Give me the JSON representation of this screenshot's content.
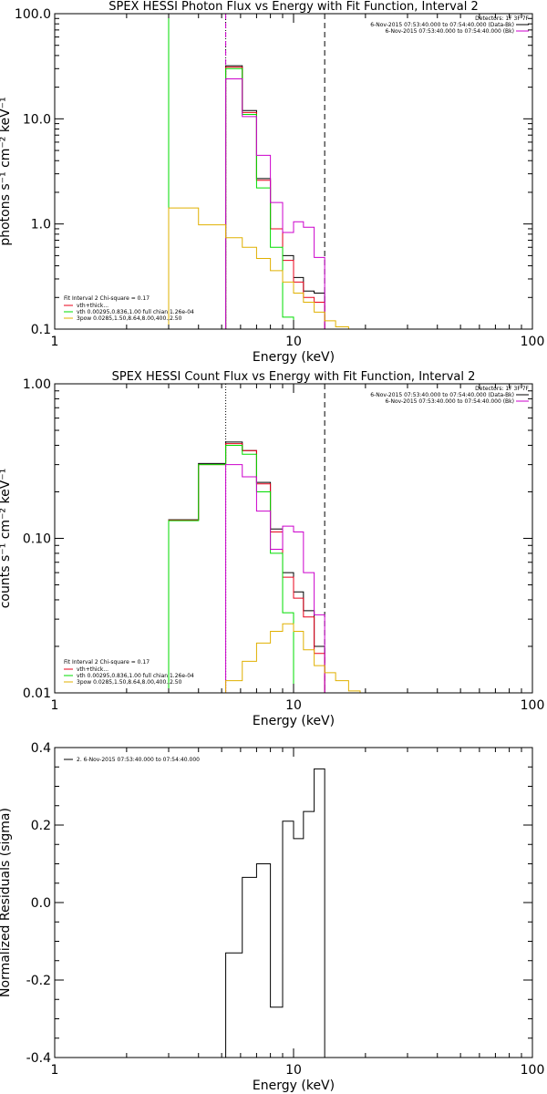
{
  "colors": {
    "background": "#ffffff",
    "axes": "#000000",
    "red": "#e8001a",
    "green": "#00dd00",
    "magenta": "#cc00cc",
    "yellow": "#e0b000",
    "black": "#000000"
  },
  "chart_data": [
    {
      "type": "line",
      "title": "SPEX HESSI Photon Flux vs Energy with Fit Function, Interval 2",
      "xlabel": "Energy (keV)",
      "ylabel": "photons s⁻¹ cm⁻² keV⁻¹",
      "xscale": "log",
      "yscale": "log",
      "xlim": [
        1,
        100
      ],
      "ylim": [
        0.1,
        100
      ],
      "x_ticks": [
        "1",
        "10",
        "100"
      ],
      "y_ticks": [
        "0.1",
        "1.0",
        "10.0",
        "100.0"
      ],
      "legend_left": {
        "header": "Fit Interval 2   Chi-square = 0.17",
        "entries": [
          {
            "label": "vth+thick...",
            "color": "red"
          },
          {
            "label": "vth 0.00295,0.836,1.00  full chian 1.26e-04",
            "color": "green"
          },
          {
            "label": "3pow 0.0285,1.50,8.64,8.00,400.,2.50",
            "color": "yellow"
          }
        ]
      },
      "legend_right": {
        "header": "Detectors: 1F 3F 7F",
        "entries": [
          {
            "label": "6-Nov-2015 07:53:40.000 to 07:54:40.000 (Data-Bk)",
            "color": "black"
          },
          {
            "label": "6-Nov-2015 07:53:40.000 to 07:54:40.000 (Bk)",
            "color": "magenta"
          }
        ]
      },
      "vlines": [
        {
          "x": 3.0,
          "style": "solid",
          "color": "green"
        },
        {
          "x": 5.2,
          "style": "dotted",
          "color": "black"
        },
        {
          "x": 5.2,
          "style": "dashed",
          "color": "magenta"
        },
        {
          "x": 13.5,
          "style": "dashed",
          "color": "black"
        }
      ],
      "series": [
        {
          "color": "black",
          "edges": [
            5.2,
            6.1,
            7.0,
            8.0,
            9.0,
            10.0,
            11.0,
            12.2,
            13.5
          ],
          "values": [
            32,
            12,
            2.7,
            0.9,
            0.5,
            0.31,
            0.23,
            0.22
          ]
        },
        {
          "color": "red",
          "edges": [
            5.2,
            6.1,
            7.0,
            8.0,
            9.0,
            10.0,
            11.0,
            12.2,
            13.5
          ],
          "values": [
            31,
            11.5,
            2.6,
            0.9,
            0.45,
            0.28,
            0.2,
            0.18
          ]
        },
        {
          "color": "green",
          "edges": [
            3.0,
            5.2,
            6.1,
            7.0,
            8.0,
            9.0,
            10.0
          ],
          "values": [
            0.09,
            30,
            11,
            2.2,
            0.6,
            0.13,
            0.09
          ]
        },
        {
          "color": "magenta",
          "edges": [
            5.2,
            6.1,
            7.0,
            8.0,
            9.0,
            10.0,
            11.0,
            12.2,
            13.5
          ],
          "values": [
            24,
            10.5,
            4.5,
            1.6,
            0.83,
            1.05,
            0.93,
            0.48
          ]
        },
        {
          "color": "yellow",
          "edges": [
            3.0,
            4.0,
            5.2,
            6.1,
            7.0,
            8.0,
            9.0,
            10.0,
            11.0,
            12.2,
            13.5,
            15.0,
            17.0
          ],
          "values": [
            1.42,
            0.98,
            0.74,
            0.6,
            0.47,
            0.36,
            0.28,
            0.22,
            0.18,
            0.145,
            0.12,
            0.105
          ]
        }
      ]
    },
    {
      "type": "line",
      "title": "SPEX HESSI Count Flux vs Energy with Fit Function, Interval 2",
      "xlabel": "Energy (keV)",
      "ylabel": "counts s⁻¹ cm⁻² keV⁻¹",
      "xscale": "log",
      "yscale": "log",
      "xlim": [
        1,
        100
      ],
      "ylim": [
        0.01,
        1
      ],
      "x_ticks": [
        "1",
        "10",
        "100"
      ],
      "y_ticks": [
        "0.01",
        "0.10",
        "1.00"
      ],
      "legend_left": {
        "header": "Fit Interval 2   Chi-square = 0.17",
        "entries": [
          {
            "label": "vth+thick...",
            "color": "red"
          },
          {
            "label": "vth 0.00295,0.836,1.00  full chian 1.26e-04",
            "color": "green"
          },
          {
            "label": "3pow 0.0285,1.50,8.64,8.00,400.,2.50",
            "color": "yellow"
          }
        ]
      },
      "legend_right": {
        "header": "Detectors: 1F 3F 7F",
        "entries": [
          {
            "label": "6-Nov-2015 07:53:40.000 to 07:54:40.000 (Data-Bk)",
            "color": "black"
          },
          {
            "label": "6-Nov-2015 07:53:40.000 to 07:54:40.000 (Bk)",
            "color": "magenta"
          }
        ]
      },
      "vlines": [
        {
          "x": 5.2,
          "style": "dotted",
          "color": "black"
        },
        {
          "x": 13.5,
          "style": "dashed",
          "color": "black"
        }
      ],
      "series": [
        {
          "color": "black",
          "edges": [
            3.0,
            4.0,
            5.2,
            6.1,
            7.0,
            8.0,
            9.0,
            10.0,
            11.0,
            12.2,
            13.5
          ],
          "values": [
            0.132,
            0.305,
            0.42,
            0.37,
            0.23,
            0.115,
            0.06,
            0.045,
            0.034,
            0.02
          ]
        },
        {
          "color": "red",
          "edges": [
            3.0,
            4.0,
            5.2,
            6.1,
            7.0,
            8.0,
            9.0,
            10.0,
            11.0,
            12.2,
            13.5
          ],
          "values": [
            0.131,
            0.3,
            0.41,
            0.37,
            0.225,
            0.11,
            0.056,
            0.041,
            0.031,
            0.018
          ]
        },
        {
          "color": "green",
          "edges": [
            3.0,
            4.0,
            5.2,
            6.1,
            7.0,
            8.0,
            9.0,
            10.0
          ],
          "values": [
            0.13,
            0.3,
            0.4,
            0.35,
            0.2,
            0.08,
            0.033
          ]
        },
        {
          "color": "magenta",
          "edges": [
            5.2,
            6.1,
            7.0,
            8.0,
            9.0,
            10.0,
            11.0,
            12.2,
            13.5
          ],
          "values": [
            0.3,
            0.25,
            0.15,
            0.085,
            0.12,
            0.11,
            0.06,
            0.032
          ]
        },
        {
          "color": "yellow",
          "edges": [
            5.2,
            6.1,
            7.0,
            8.0,
            9.0,
            10.0,
            11.0,
            12.2,
            13.5,
            15.0,
            17.0,
            19.0
          ],
          "values": [
            0.012,
            0.016,
            0.021,
            0.025,
            0.028,
            0.025,
            0.019,
            0.015,
            0.0135,
            0.012,
            0.0103
          ]
        }
      ]
    },
    {
      "type": "line",
      "title": "",
      "xlabel": "Energy (keV)",
      "ylabel": "Normalized Residuals (sigma)",
      "xscale": "log",
      "yscale": "linear",
      "xlim": [
        1,
        100
      ],
      "ylim": [
        -0.4,
        0.4
      ],
      "x_ticks": [
        "1",
        "10",
        "100"
      ],
      "y_ticks": [
        "-0.4",
        "-0.2",
        "0.0",
        "0.2",
        "0.4"
      ],
      "legend_left": {
        "header": "",
        "entries": [
          {
            "label": "2.  6-Nov-2015 07:53:40.000 to 07:54:40.000",
            "color": "black"
          }
        ]
      },
      "vlines": [],
      "series": [
        {
          "color": "black",
          "edges": [
            5.2,
            6.1,
            7.0,
            8.0,
            9.0,
            10.0,
            11.0,
            12.2,
            13.5
          ],
          "values": [
            -0.13,
            0.065,
            0.1,
            -0.27,
            0.21,
            0.165,
            0.235,
            0.345
          ],
          "drop_to_bottom": true
        }
      ]
    }
  ]
}
